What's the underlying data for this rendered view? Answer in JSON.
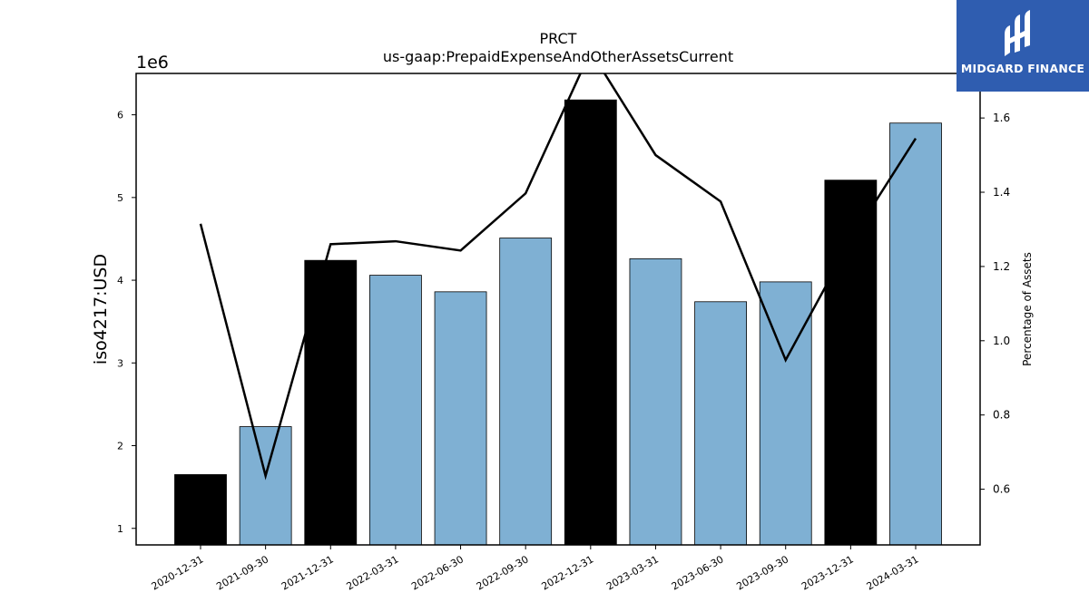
{
  "chart_data": {
    "type": "bar",
    "title": "PRCT",
    "subtitle": "us-gaap:PrepaidExpenseAndOtherAssetsCurrent",
    "ylabel": "iso4217:USD",
    "y_offset_label": "1e6",
    "y2label": "Percentage of Assets",
    "categories": [
      "2020-12-31",
      "2021-09-30",
      "2021-12-31",
      "2022-03-31",
      "2022-06-30",
      "2022-09-30",
      "2022-12-31",
      "2023-03-31",
      "2023-06-30",
      "2023-09-30",
      "2023-12-31",
      "2024-03-31"
    ],
    "series": [
      {
        "values": [
          1.65,
          2.23,
          4.24,
          4.06,
          3.86,
          4.51,
          6.18,
          4.26,
          3.74,
          3.98,
          5.21,
          5.9
        ],
        "colors": [
          "#000000",
          "#7fb0d3",
          "#000000",
          "#7fb0d3",
          "#7fb0d3",
          "#7fb0d3",
          "#000000",
          "#7fb0d3",
          "#7fb0d3",
          "#7fb0d3",
          "#000000",
          "#7fb0d3"
        ]
      },
      {
        "axis": "right",
        "type": "line",
        "values": [
          1.315,
          0.636,
          1.26,
          1.268,
          1.243,
          1.397,
          1.78,
          1.5,
          1.375,
          0.948,
          1.27,
          1.545
        ],
        "color": "#000000"
      }
    ],
    "ylim": [
      0.8,
      6.5
    ],
    "yticks": [
      1,
      2,
      3,
      4,
      5,
      6
    ],
    "y2lim": [
      0.45,
      1.72
    ],
    "y2ticks": [
      "0.6",
      "0.8",
      "1.0",
      "1.2",
      "1.4",
      "1.6"
    ],
    "grid": false
  },
  "logo": {
    "text": "MIDGARD FINANCE",
    "color": "#2f5db0"
  }
}
